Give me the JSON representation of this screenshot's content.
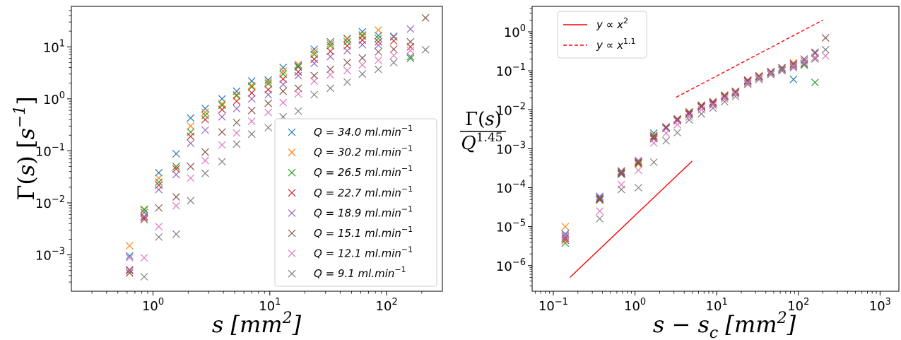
{
  "chart_data": [
    {
      "type": "scatter",
      "xscale": "log",
      "yscale": "log",
      "xlim": [
        0.2,
        300
      ],
      "ylim": [
        0.0002,
        60
      ],
      "xlabel": "s  [mm²]",
      "ylabel": "Γ(s)  [s⁻¹]",
      "xticks": [
        {
          "v": 1,
          "m": "10",
          "e": "0"
        },
        {
          "v": 10,
          "m": "10",
          "e": "1"
        },
        {
          "v": 100,
          "m": "10",
          "e": "2"
        }
      ],
      "yticks": [
        {
          "v": 0.001,
          "m": "10",
          "e": "−3"
        },
        {
          "v": 0.01,
          "m": "10",
          "e": "−2"
        },
        {
          "v": 0.1,
          "m": "10",
          "e": "−1"
        },
        {
          "v": 1,
          "m": "10",
          "e": "0"
        },
        {
          "v": 10,
          "m": "10",
          "e": "1"
        }
      ],
      "legend": "lower-right",
      "x": [
        0.63,
        0.84,
        1.12,
        1.58,
        2.1,
        2.8,
        3.9,
        5.2,
        7.0,
        9.7,
        13,
        17.5,
        24,
        33,
        46,
        62,
        85,
        115,
        160,
        215
      ],
      "series": [
        {
          "name": "Q = 34.0 ml.min⁻¹",
          "color": "#1f77b4",
          "y": [
            0.00095,
            0.0065,
            0.038,
            0.088,
            0.43,
            0.65,
            1.0,
            1.4,
            2.2,
            2.3,
            4.0,
            4.3,
            9.0,
            12.5,
            14.5,
            19.5,
            16.5,
            null,
            null,
            null
          ]
        },
        {
          "name": "Q = 30.2 ml.min⁻¹",
          "color": "#ff7f0e",
          "y": [
            0.0015,
            0.0072,
            0.03,
            0.05,
            0.3,
            0.55,
            0.8,
            1.2,
            1.8,
            2.1,
            3.4,
            4.6,
            8.0,
            11.5,
            14.0,
            17.0,
            21.0,
            null,
            null,
            null
          ]
        },
        {
          "name": "Q = 26.5 ml.min⁻¹",
          "color": "#2ca02c",
          "y": [
            0.00045,
            0.0075,
            0.025,
            0.05,
            0.23,
            0.48,
            0.75,
            1.15,
            1.7,
            1.95,
            3.0,
            4.1,
            7.2,
            10.5,
            12.5,
            16.0,
            14.5,
            15.5,
            6.0,
            null
          ]
        },
        {
          "name": "Q = 22.7 ml.min⁻¹",
          "color": "#d62728",
          "y": [
            0.0005,
            0.0052,
            0.022,
            0.045,
            0.19,
            0.4,
            0.62,
            0.9,
            1.3,
            1.5,
            2.4,
            3.3,
            5.8,
            8.2,
            10.5,
            13.5,
            12.5,
            13.0,
            10.0,
            null
          ]
        },
        {
          "name": "Q = 18.9 ml.min⁻¹",
          "color": "#9467bd",
          "y": [
            0.00052,
            0.0055,
            0.018,
            0.035,
            0.14,
            0.25,
            0.45,
            0.65,
            1.0,
            1.2,
            1.9,
            2.8,
            4.8,
            6.5,
            8.4,
            11.0,
            10.8,
            16.0,
            22.0,
            null
          ]
        },
        {
          "name": "Q = 15.1 ml.min⁻¹",
          "color": "#8c564b",
          "y": [
            0.00045,
            0.0048,
            0.008,
            0.013,
            0.05,
            0.095,
            0.23,
            0.35,
            0.6,
            0.82,
            1.4,
            1.6,
            2.8,
            3.7,
            5.0,
            6.1,
            8.0,
            9.0,
            12.5,
            36.0
          ]
        },
        {
          "name": "Q = 12.1 ml.min⁻¹",
          "color": "#e377c2",
          "y": [
            0.00088,
            0.00088,
            0.0035,
            0.0088,
            0.03,
            0.065,
            0.13,
            0.22,
            0.37,
            0.55,
            0.85,
            1.25,
            2.2,
            2.9,
            3.5,
            4.5,
            5.5,
            6.8,
            8.5,
            null
          ]
        },
        {
          "name": "Q = 9.1 ml.min⁻¹",
          "color": "#7f7f7f",
          "y": [
            null,
            0.00038,
            0.0022,
            0.0025,
            0.011,
            0.037,
            0.062,
            0.135,
            0.21,
            0.28,
            0.45,
            0.58,
            1.2,
            1.6,
            2.1,
            3.0,
            3.7,
            5.0,
            6.5,
            8.8
          ]
        }
      ]
    },
    {
      "type": "scatter",
      "xscale": "log",
      "yscale": "log",
      "xlim": [
        0.055,
        1700
      ],
      "ylim": [
        2.2e-07,
        4.5
      ],
      "xlabel": "s − s_c  [mm²]",
      "ylabel": "Γ(s) / Q^1.45",
      "xticks": [
        {
          "v": 0.1,
          "m": "10",
          "e": "−1"
        },
        {
          "v": 1,
          "m": "10",
          "e": "0"
        },
        {
          "v": 10,
          "m": "10",
          "e": "1"
        },
        {
          "v": 100,
          "m": "10",
          "e": "2"
        },
        {
          "v": 1000,
          "m": "10",
          "e": "3"
        }
      ],
      "yticks": [
        {
          "v": 1e-06,
          "m": "10",
          "e": "−6"
        },
        {
          "v": 1e-05,
          "m": "10",
          "e": "−5"
        },
        {
          "v": 0.0001,
          "m": "10",
          "e": "−4"
        },
        {
          "v": 0.001,
          "m": "10",
          "e": "−3"
        },
        {
          "v": 0.01,
          "m": "10",
          "e": "−2"
        },
        {
          "v": 0.1,
          "m": "10",
          "e": "−1"
        },
        {
          "v": 1,
          "m": "10",
          "e": "0"
        }
      ],
      "legend": "upper-left",
      "reference_lines": [
        {
          "label": "y ∝ x²",
          "color": "#ff0000",
          "dash": "solid",
          "x": [
            0.16,
            5.0
          ],
          "y": [
            5e-07,
            0.00048
          ]
        },
        {
          "label": "y ∝ x¹·¹",
          "color": "#ff0000",
          "dash": "dashed",
          "x": [
            3.2,
            200
          ],
          "y": [
            0.021,
            2.0
          ]
        }
      ],
      "x": [
        0.14,
        0.37,
        0.68,
        1.1,
        1.7,
        2.4,
        3.3,
        4.6,
        6.5,
        9.0,
        12.5,
        17,
        24,
        33,
        46,
        63,
        87,
        118,
        160,
        215
      ],
      "series": [
        {
          "name": "Q = 34.0 ml.min⁻¹",
          "color": "#1f77b4",
          "y": [
            6.5e-06,
            5.5e-05,
            0.00022,
            0.00045,
            0.0025,
            0.0035,
            0.0055,
            0.008,
            0.012,
            0.015,
            0.022,
            0.028,
            0.055,
            0.07,
            0.09,
            0.11,
            0.06,
            null,
            null,
            null
          ]
        },
        {
          "name": "Q = 30.2 ml.min⁻¹",
          "color": "#ff7f0e",
          "y": [
            1e-05,
            5e-05,
            0.00025,
            0.0004,
            0.0022,
            0.0036,
            0.0058,
            0.0085,
            0.013,
            0.016,
            0.024,
            0.03,
            0.058,
            0.075,
            0.095,
            0.12,
            0.16,
            null,
            null,
            null
          ]
        },
        {
          "name": "Q = 26.5 ml.min⁻¹",
          "color": "#2ca02c",
          "y": [
            3.8e-06,
            4.8e-05,
            0.00026,
            0.00042,
            0.0021,
            0.0034,
            0.0056,
            0.0083,
            0.0125,
            0.015,
            0.023,
            0.029,
            0.056,
            0.072,
            0.09,
            0.11,
            0.13,
            0.14,
            0.05,
            null
          ]
        },
        {
          "name": "Q = 22.7 ml.min⁻¹",
          "color": "#d62728",
          "y": [
            4.5e-06,
            5e-05,
            0.00024,
            0.00044,
            0.002,
            0.0035,
            0.0055,
            0.008,
            0.012,
            0.015,
            0.022,
            0.028,
            0.055,
            0.07,
            0.09,
            0.11,
            0.13,
            0.15,
            0.22,
            null
          ]
        },
        {
          "name": "Q = 18.9 ml.min⁻¹",
          "color": "#9467bd",
          "y": [
            5.5e-06,
            6e-05,
            0.00027,
            0.0005,
            0.0019,
            0.0033,
            0.0052,
            0.0075,
            0.0115,
            0.014,
            0.021,
            0.027,
            0.052,
            0.068,
            0.088,
            0.11,
            0.14,
            0.18,
            0.3,
            null
          ]
        },
        {
          "name": "Q = 15.1 ml.min⁻¹",
          "color": "#8c564b",
          "y": [
            5e-06,
            5.2e-05,
            0.00023,
            0.00046,
            0.0018,
            0.0036,
            0.0058,
            0.0088,
            0.013,
            0.016,
            0.023,
            0.029,
            0.057,
            0.073,
            0.095,
            0.12,
            0.15,
            0.2,
            0.28,
            0.7
          ]
        },
        {
          "name": "Q = 12.1 ml.min⁻¹",
          "color": "#e377c2",
          "y": [
            6e-06,
            2.5e-05,
            0.00012,
            0.00028,
            0.0014,
            0.0025,
            0.0042,
            0.0065,
            0.01,
            0.013,
            0.019,
            0.025,
            0.048,
            0.065,
            0.085,
            0.1,
            0.13,
            0.16,
            0.22,
            0.24
          ]
        },
        {
          "name": "Q = 9.1 ml.min⁻¹",
          "color": "#7f7f7f",
          "y": [
            null,
            1.6e-05,
            9e-05,
            0.0001,
            0.00045,
            0.0016,
            0.0026,
            0.0055,
            0.0078,
            0.011,
            0.016,
            0.022,
            0.045,
            0.06,
            0.08,
            0.1,
            0.12,
            0.15,
            0.2,
            0.35
          ]
        }
      ]
    }
  ]
}
